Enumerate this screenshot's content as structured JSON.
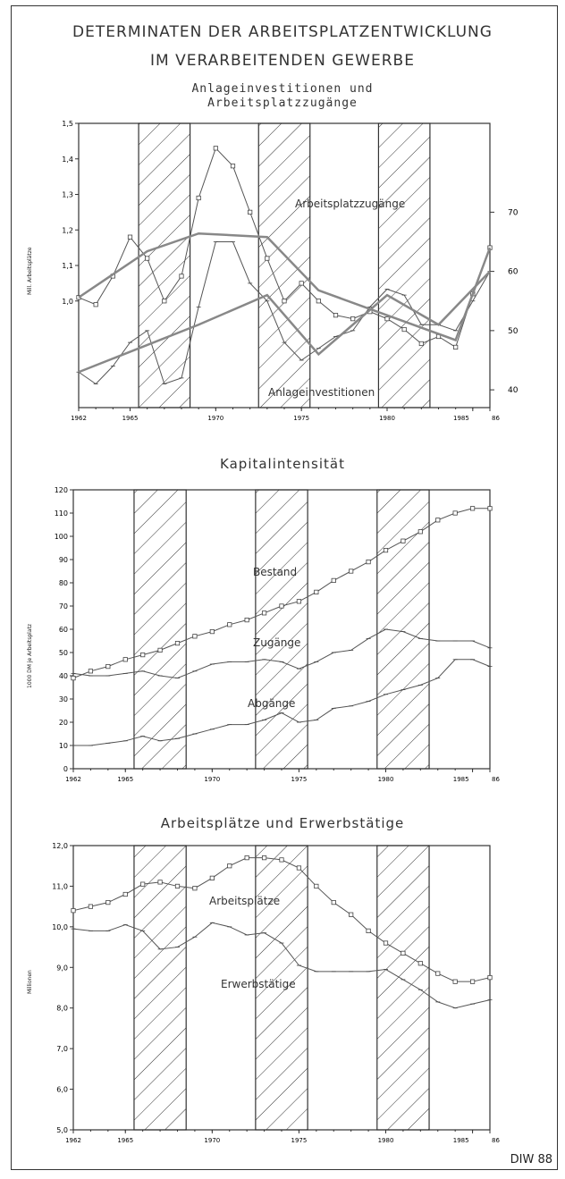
{
  "title_line1": "DETERMINATEN DER ARBEITSPLATZENTWICKLUNG",
  "title_line2": "IM VERARBEITENDEN GEWERBE",
  "credit": "DIW 88",
  "recession_periods": [
    [
      1965.5,
      1968.5
    ],
    [
      1972.5,
      1975.5
    ],
    [
      1979.5,
      1982.5
    ]
  ],
  "chart_data": [
    {
      "type": "line",
      "title": "Anlageinvestitionen und\nArbeitsplatzzugänge",
      "ylabel": "Mill. Arbeitsplätze",
      "xlim": [
        1962,
        1986
      ],
      "ylim": [
        0.7,
        1.5
      ],
      "y_ticks": [
        "1,5",
        "1,4",
        "1,3",
        "1,2",
        "1,1",
        "1,0"
      ],
      "y2_ticks": [
        "70",
        "60",
        "50",
        "40"
      ],
      "y2lim": [
        37,
        85
      ],
      "x_ticks": [
        "1962",
        "1965",
        "1970",
        "1975",
        "1980",
        "1985",
        "86"
      ],
      "series": [
        {
          "name": "Arbeitsplatzzugänge",
          "axis": "left",
          "x": [
            1962,
            1963,
            1964,
            1965,
            1966,
            1967,
            1968,
            1969,
            1970,
            1971,
            1972,
            1973,
            1974,
            1975,
            1976,
            1977,
            1978,
            1979,
            1980,
            1981,
            1982,
            1983,
            1984,
            1985,
            1986
          ],
          "values": [
            1.01,
            0.99,
            1.07,
            1.18,
            1.12,
            1.0,
            1.07,
            1.29,
            1.43,
            1.38,
            1.25,
            1.12,
            1.0,
            1.05,
            1.0,
            0.96,
            0.95,
            0.97,
            0.95,
            0.92,
            0.88,
            0.9,
            0.87,
            1.02,
            1.15
          ]
        },
        {
          "name": "Anlageinvestitionen",
          "axis": "right",
          "x": [
            1962,
            1963,
            1964,
            1965,
            1966,
            1967,
            1968,
            1969,
            1970,
            1971,
            1972,
            1973,
            1974,
            1975,
            1976,
            1977,
            1978,
            1979,
            1980,
            1981,
            1982,
            1983,
            1984,
            1985,
            1986
          ],
          "values": [
            43,
            41,
            44,
            48,
            50,
            41,
            42,
            54,
            65,
            65,
            58,
            55,
            48,
            45,
            47,
            49,
            50,
            54,
            57,
            56,
            51,
            51,
            50,
            55,
            60
          ]
        }
      ],
      "labels": [
        "Arbeitsplatzzugänge",
        "Anlageinvestitionen"
      ]
    },
    {
      "type": "line",
      "title": "Kapitalintensität",
      "ylabel": "1000 DM je Arbeitsplatz",
      "xlim": [
        1962,
        1986
      ],
      "ylim": [
        0,
        120
      ],
      "y_ticks": [
        "120",
        "110",
        "100",
        "90",
        "80",
        "70",
        "60",
        "50",
        "40",
        "30",
        "20",
        "10",
        "0"
      ],
      "x_ticks": [
        "1962",
        "1965",
        "1970",
        "1975",
        "1980",
        "1985",
        "86"
      ],
      "series": [
        {
          "name": "Bestand",
          "x": [
            1962,
            1963,
            1964,
            1965,
            1966,
            1967,
            1968,
            1969,
            1970,
            1971,
            1972,
            1973,
            1974,
            1975,
            1976,
            1977,
            1978,
            1979,
            1980,
            1981,
            1982,
            1983,
            1984,
            1985,
            1986
          ],
          "values": [
            39,
            42,
            44,
            47,
            49,
            51,
            54,
            57,
            59,
            62,
            64,
            67,
            70,
            72,
            76,
            81,
            85,
            89,
            94,
            98,
            102,
            107,
            110,
            112,
            112
          ]
        },
        {
          "name": "Zugänge",
          "x": [
            1962,
            1963,
            1964,
            1965,
            1966,
            1967,
            1968,
            1969,
            1970,
            1971,
            1972,
            1973,
            1974,
            1975,
            1976,
            1977,
            1978,
            1979,
            1980,
            1981,
            1982,
            1983,
            1984,
            1985,
            1986
          ],
          "values": [
            41,
            40,
            40,
            41,
            42,
            40,
            39,
            42,
            45,
            46,
            46,
            47,
            46,
            43,
            46,
            50,
            51,
            56,
            60,
            59,
            56,
            55,
            55,
            55,
            52
          ]
        },
        {
          "name": "Abgänge",
          "x": [
            1962,
            1963,
            1964,
            1965,
            1966,
            1967,
            1968,
            1969,
            1970,
            1971,
            1972,
            1973,
            1974,
            1975,
            1976,
            1977,
            1978,
            1979,
            1980,
            1981,
            1982,
            1983,
            1984,
            1985,
            1986
          ],
          "values": [
            10,
            10,
            11,
            12,
            14,
            12,
            13,
            15,
            17,
            19,
            19,
            21,
            24,
            20,
            21,
            26,
            27,
            29,
            32,
            34,
            36,
            39,
            47,
            47,
            44
          ]
        }
      ],
      "labels": [
        "Bestand",
        "Zugänge",
        "Abgänge"
      ]
    },
    {
      "type": "line",
      "title": "Arbeitsplätze und Erwerbstätige",
      "ylabel": "Millionen",
      "xlim": [
        1962,
        1986
      ],
      "ylim": [
        5.0,
        12.0
      ],
      "y_ticks": [
        "12,0",
        "11,0",
        "10,0",
        "9,0",
        "8,0",
        "7,0",
        "6,0",
        "5,0"
      ],
      "x_ticks": [
        "1962",
        "1965",
        "1970",
        "1975",
        "1980",
        "1985",
        "86"
      ],
      "series": [
        {
          "name": "Arbeitsplätze",
          "x": [
            1962,
            1963,
            1964,
            1965,
            1966,
            1967,
            1968,
            1969,
            1970,
            1971,
            1972,
            1973,
            1974,
            1975,
            1976,
            1977,
            1978,
            1979,
            1980,
            1981,
            1982,
            1983,
            1984,
            1985,
            1986
          ],
          "values": [
            10.4,
            10.5,
            10.6,
            10.8,
            11.05,
            11.1,
            11.0,
            10.95,
            11.2,
            11.5,
            11.7,
            11.7,
            11.65,
            11.45,
            11.0,
            10.6,
            10.3,
            9.9,
            9.6,
            9.35,
            9.1,
            8.85,
            8.65,
            8.65,
            8.75
          ]
        },
        {
          "name": "Erwerbstätige",
          "x": [
            1962,
            1963,
            1964,
            1965,
            1966,
            1967,
            1968,
            1969,
            1970,
            1971,
            1972,
            1973,
            1974,
            1975,
            1976,
            1977,
            1978,
            1979,
            1980,
            1981,
            1982,
            1983,
            1984,
            1985,
            1986
          ],
          "values": [
            9.95,
            9.9,
            9.9,
            10.05,
            9.9,
            9.45,
            9.5,
            9.75,
            10.1,
            10.0,
            9.8,
            9.85,
            9.6,
            9.05,
            8.9,
            8.9,
            8.9,
            8.9,
            8.95,
            8.7,
            8.45,
            8.15,
            8.0,
            8.1,
            8.2
          ]
        }
      ],
      "labels": [
        "Arbeitsplätze",
        "Erwerbstätige"
      ]
    }
  ]
}
